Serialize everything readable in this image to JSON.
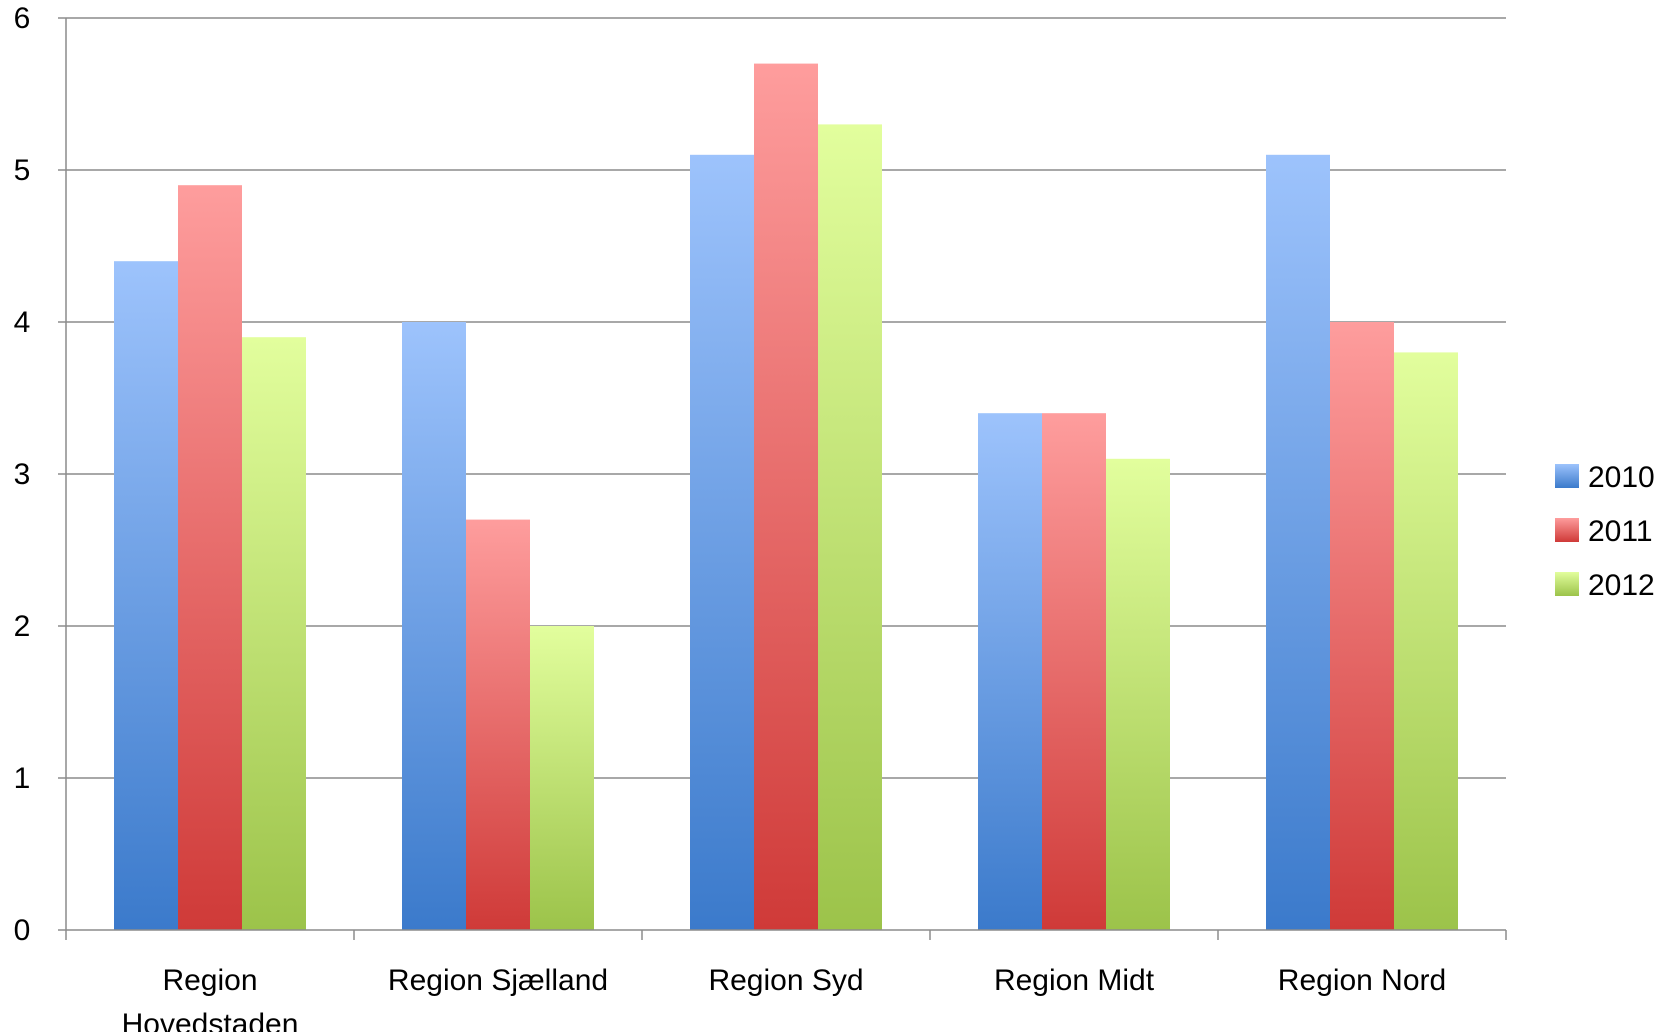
{
  "chart_data": {
    "type": "bar",
    "categories": [
      [
        "Region",
        "Hovedstaden"
      ],
      [
        "Region Sjælland"
      ],
      [
        "Region Syd"
      ],
      [
        "Region Midt"
      ],
      [
        "Region Nord"
      ]
    ],
    "series": [
      {
        "name": "2010",
        "values": [
          4.4,
          4.0,
          5.1,
          3.4,
          5.1
        ],
        "color_top": "#9dc3fc",
        "color_bottom": "#3b7acb"
      },
      {
        "name": "2011",
        "values": [
          4.9,
          2.7,
          5.7,
          3.4,
          4.0
        ],
        "color_top": "#fe9d9d",
        "color_bottom": "#cf3a38"
      },
      {
        "name": "2012",
        "values": [
          3.9,
          2.0,
          5.3,
          3.1,
          3.8
        ],
        "color_top": "#e2fe9d",
        "color_bottom": "#9cc34a"
      }
    ],
    "y_ticks": [
      "0",
      "1",
      "2",
      "3",
      "4",
      "5",
      "6"
    ],
    "ylim": [
      0,
      6
    ],
    "grid": true,
    "legend_position": "right",
    "title": "",
    "xlabel": "",
    "ylabel": ""
  }
}
